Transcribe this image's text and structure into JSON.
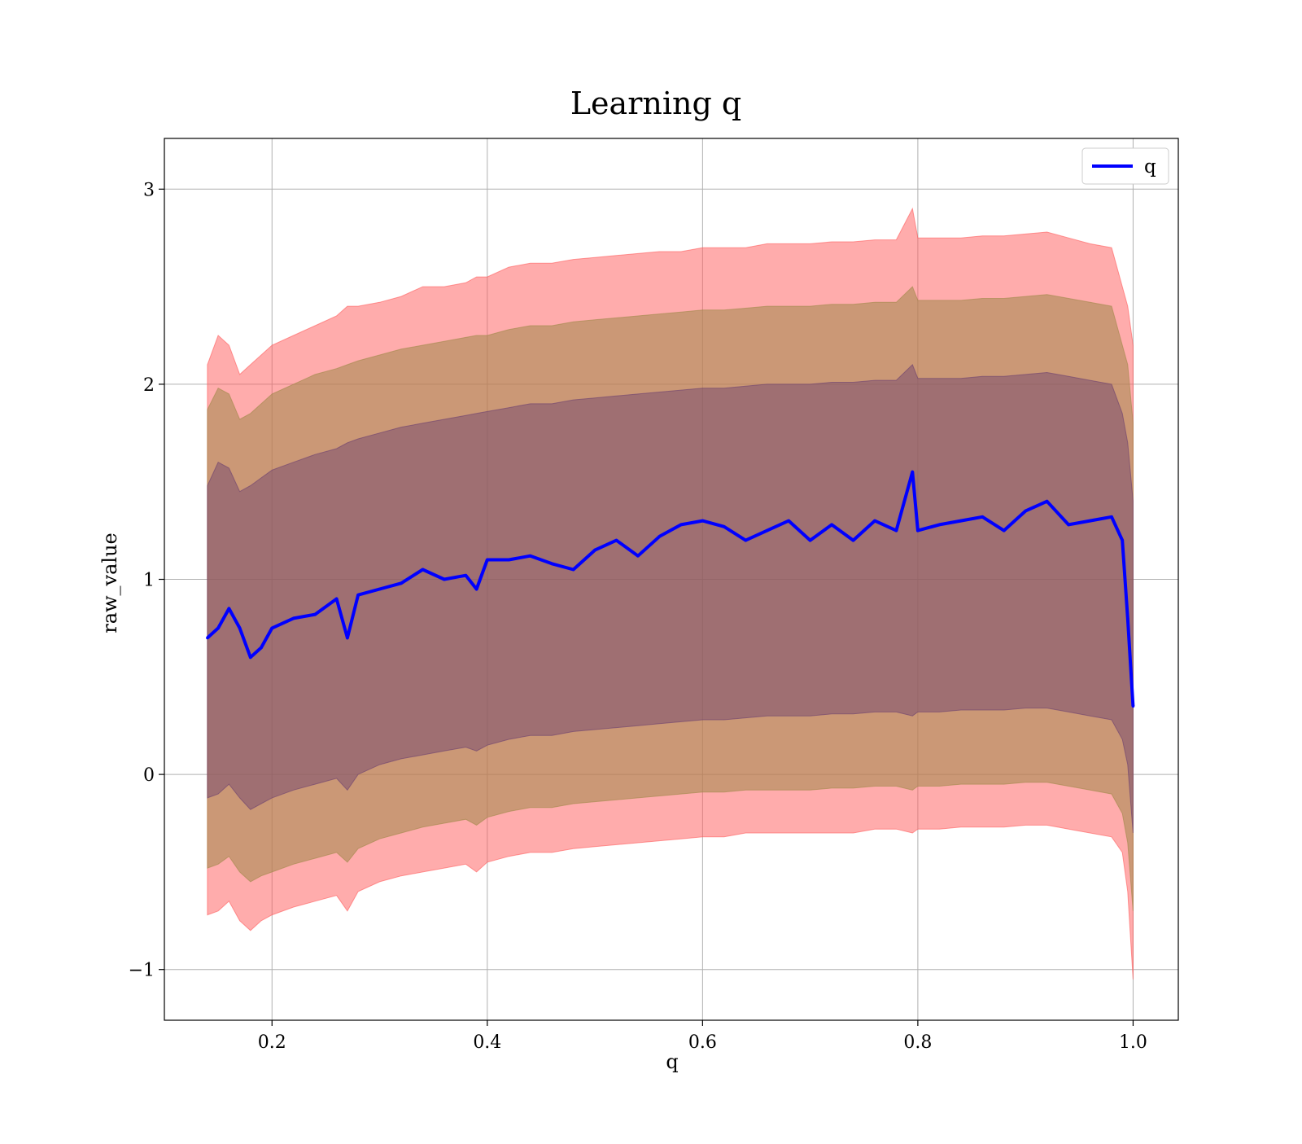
{
  "chart_data": {
    "type": "line",
    "title": "Learning q",
    "xlabel": "q",
    "ylabel": "raw_value",
    "xlim": [
      0.1,
      1.042
    ],
    "ylim": [
      -1.26,
      3.26
    ],
    "xticks": [
      0.2,
      0.4,
      0.6,
      0.8,
      1.0
    ],
    "xtick_labels": [
      "0.2",
      "0.4",
      "0.6",
      "0.8",
      "1.0"
    ],
    "yticks": [
      -1,
      0,
      1,
      2,
      3
    ],
    "ytick_labels": [
      "−1",
      "0",
      "1",
      "2",
      "3"
    ],
    "grid": true,
    "legend": {
      "position": "top-right",
      "entries": [
        "q"
      ]
    },
    "colors": {
      "line": "#0000ff",
      "band_outer": "#ff5a5a",
      "band_middle": "#a0884a",
      "band_inner": "#6a3f6f",
      "center": "#a06e78"
    },
    "series": [
      {
        "name": "q",
        "x": [
          0.14,
          0.15,
          0.16,
          0.17,
          0.18,
          0.19,
          0.2,
          0.22,
          0.24,
          0.26,
          0.27,
          0.28,
          0.3,
          0.32,
          0.34,
          0.36,
          0.38,
          0.39,
          0.4,
          0.42,
          0.44,
          0.46,
          0.48,
          0.5,
          0.52,
          0.54,
          0.56,
          0.58,
          0.6,
          0.62,
          0.64,
          0.66,
          0.68,
          0.7,
          0.72,
          0.74,
          0.76,
          0.78,
          0.795,
          0.8,
          0.82,
          0.84,
          0.86,
          0.88,
          0.9,
          0.92,
          0.94,
          0.96,
          0.98,
          0.99,
          0.995,
          1.0
        ],
        "y": [
          0.7,
          0.75,
          0.85,
          0.75,
          0.6,
          0.65,
          0.75,
          0.8,
          0.82,
          0.9,
          0.7,
          0.92,
          0.95,
          0.98,
          1.05,
          1.0,
          1.02,
          0.95,
          1.1,
          1.1,
          1.12,
          1.08,
          1.05,
          1.15,
          1.2,
          1.12,
          1.22,
          1.28,
          1.3,
          1.27,
          1.2,
          1.25,
          1.3,
          1.2,
          1.28,
          1.2,
          1.3,
          1.25,
          1.55,
          1.25,
          1.28,
          1.3,
          1.32,
          1.25,
          1.35,
          1.4,
          1.28,
          1.3,
          1.32,
          1.2,
          0.8,
          0.35
        ]
      }
    ],
    "bands": [
      {
        "level": "outer",
        "upper": [
          2.1,
          2.25,
          2.2,
          2.05,
          2.1,
          2.15,
          2.2,
          2.25,
          2.3,
          2.35,
          2.4,
          2.4,
          2.42,
          2.45,
          2.5,
          2.5,
          2.52,
          2.55,
          2.55,
          2.6,
          2.62,
          2.62,
          2.64,
          2.65,
          2.66,
          2.67,
          2.68,
          2.68,
          2.7,
          2.7,
          2.7,
          2.72,
          2.72,
          2.72,
          2.73,
          2.73,
          2.74,
          2.74,
          2.9,
          2.75,
          2.75,
          2.75,
          2.76,
          2.76,
          2.77,
          2.78,
          2.75,
          2.72,
          2.7,
          2.5,
          2.4,
          2.2
        ],
        "lower": [
          -0.72,
          -0.7,
          -0.65,
          -0.75,
          -0.8,
          -0.75,
          -0.72,
          -0.68,
          -0.65,
          -0.62,
          -0.7,
          -0.6,
          -0.55,
          -0.52,
          -0.5,
          -0.48,
          -0.46,
          -0.5,
          -0.45,
          -0.42,
          -0.4,
          -0.4,
          -0.38,
          -0.37,
          -0.36,
          -0.35,
          -0.34,
          -0.33,
          -0.32,
          -0.32,
          -0.3,
          -0.3,
          -0.3,
          -0.3,
          -0.3,
          -0.3,
          -0.28,
          -0.28,
          -0.3,
          -0.28,
          -0.28,
          -0.27,
          -0.27,
          -0.27,
          -0.26,
          -0.26,
          -0.28,
          -0.3,
          -0.32,
          -0.4,
          -0.6,
          -1.05
        ]
      },
      {
        "level": "middle",
        "upper": [
          1.87,
          1.98,
          1.95,
          1.82,
          1.85,
          1.9,
          1.95,
          2.0,
          2.05,
          2.08,
          2.1,
          2.12,
          2.15,
          2.18,
          2.2,
          2.22,
          2.24,
          2.25,
          2.25,
          2.28,
          2.3,
          2.3,
          2.32,
          2.33,
          2.34,
          2.35,
          2.36,
          2.37,
          2.38,
          2.38,
          2.39,
          2.4,
          2.4,
          2.4,
          2.41,
          2.41,
          2.42,
          2.42,
          2.5,
          2.43,
          2.43,
          2.43,
          2.44,
          2.44,
          2.45,
          2.46,
          2.44,
          2.42,
          2.4,
          2.2,
          2.1,
          1.8
        ],
        "lower": [
          -0.48,
          -0.46,
          -0.42,
          -0.5,
          -0.55,
          -0.52,
          -0.5,
          -0.46,
          -0.43,
          -0.4,
          -0.45,
          -0.38,
          -0.33,
          -0.3,
          -0.27,
          -0.25,
          -0.23,
          -0.26,
          -0.22,
          -0.19,
          -0.17,
          -0.17,
          -0.15,
          -0.14,
          -0.13,
          -0.12,
          -0.11,
          -0.1,
          -0.09,
          -0.09,
          -0.08,
          -0.08,
          -0.08,
          -0.08,
          -0.07,
          -0.07,
          -0.06,
          -0.06,
          -0.08,
          -0.06,
          -0.06,
          -0.05,
          -0.05,
          -0.05,
          -0.04,
          -0.04,
          -0.06,
          -0.08,
          -0.1,
          -0.2,
          -0.35,
          -0.7
        ]
      },
      {
        "level": "inner",
        "upper": [
          1.48,
          1.6,
          1.57,
          1.45,
          1.48,
          1.52,
          1.56,
          1.6,
          1.64,
          1.67,
          1.7,
          1.72,
          1.75,
          1.78,
          1.8,
          1.82,
          1.84,
          1.85,
          1.86,
          1.88,
          1.9,
          1.9,
          1.92,
          1.93,
          1.94,
          1.95,
          1.96,
          1.97,
          1.98,
          1.98,
          1.99,
          2.0,
          2.0,
          2.0,
          2.01,
          2.01,
          2.02,
          2.02,
          2.1,
          2.03,
          2.03,
          2.03,
          2.04,
          2.04,
          2.05,
          2.06,
          2.04,
          2.02,
          2.0,
          1.85,
          1.7,
          1.4
        ],
        "lower": [
          -0.12,
          -0.1,
          -0.05,
          -0.12,
          -0.18,
          -0.15,
          -0.12,
          -0.08,
          -0.05,
          -0.02,
          -0.08,
          0.0,
          0.05,
          0.08,
          0.1,
          0.12,
          0.14,
          0.12,
          0.15,
          0.18,
          0.2,
          0.2,
          0.22,
          0.23,
          0.24,
          0.25,
          0.26,
          0.27,
          0.28,
          0.28,
          0.29,
          0.3,
          0.3,
          0.3,
          0.31,
          0.31,
          0.32,
          0.32,
          0.3,
          0.32,
          0.32,
          0.33,
          0.33,
          0.33,
          0.34,
          0.34,
          0.32,
          0.3,
          0.28,
          0.18,
          0.05,
          -0.3
        ]
      }
    ]
  }
}
